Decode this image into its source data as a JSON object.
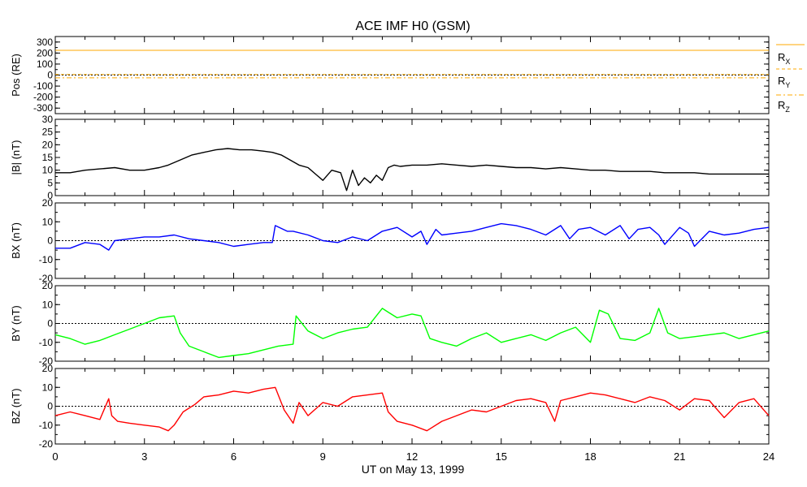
{
  "title": "ACE IMF H0 (GSM)",
  "xlabel": "UT on May 13, 1999",
  "x_ticks": [
    "0",
    "3",
    "6",
    "9",
    "12",
    "15",
    "18",
    "21",
    "24"
  ],
  "colors": {
    "pos_x": "#ffaa00",
    "pos_y": "#ffaa00",
    "pos_z": "#ffaa00",
    "bt": "#000000",
    "bx": "#0000ff",
    "by": "#00ff00",
    "bz": "#ff0000"
  },
  "chart_data": [
    {
      "type": "line",
      "panel": "pos",
      "ylabel": "Pos (RE)",
      "ylim": [
        -350,
        350
      ],
      "y_ticks": [
        -300,
        -200,
        -100,
        0,
        100,
        200,
        300
      ],
      "xlim": [
        0,
        24
      ],
      "zero_line": true,
      "series": [
        {
          "name": "RX",
          "x": [
            0,
            24
          ],
          "y": [
            225,
            225
          ]
        },
        {
          "name": "RY",
          "x": [
            0,
            24
          ],
          "y": [
            5,
            5
          ]
        },
        {
          "name": "RZ",
          "x": [
            0,
            24
          ],
          "y": [
            -25,
            -25
          ]
        }
      ]
    },
    {
      "type": "line",
      "panel": "bt",
      "ylabel": "|B| (nT)",
      "ylim": [
        0,
        30
      ],
      "y_ticks": [
        0,
        5,
        10,
        15,
        20,
        25,
        30
      ],
      "xlim": [
        0,
        24
      ],
      "zero_line": false,
      "series": [
        {
          "x": [
            0,
            0.5,
            1,
            1.5,
            2,
            2.5,
            3,
            3.5,
            3.8,
            4.2,
            4.6,
            5,
            5.4,
            5.8,
            6.2,
            6.6,
            7,
            7.3,
            7.6,
            7.9,
            8.2,
            8.5,
            8.8,
            9,
            9.3,
            9.6,
            9.8,
            10,
            10.2,
            10.4,
            10.6,
            10.8,
            11,
            11.2,
            11.4,
            11.6,
            12,
            12.5,
            13,
            13.5,
            14,
            14.5,
            15,
            15.5,
            16,
            16.5,
            17,
            17.5,
            18,
            18.5,
            19,
            19.5,
            20,
            20.5,
            21,
            21.5,
            22,
            22.5,
            23,
            23.5,
            24
          ],
          "y": [
            9,
            9,
            10,
            10.5,
            11,
            10,
            10,
            11,
            12,
            14,
            16,
            17,
            18,
            18.5,
            18,
            18,
            17.5,
            17,
            16,
            14,
            12,
            11,
            8,
            6,
            10,
            9,
            2,
            10,
            4,
            7,
            5,
            8,
            6,
            11,
            12,
            11.5,
            12,
            12,
            12.5,
            12,
            11.5,
            12,
            11.5,
            11,
            11,
            10.5,
            11,
            10.5,
            10,
            10,
            9.5,
            9.5,
            9.5,
            9,
            9,
            9,
            8.5,
            8.5,
            8.5,
            8.5,
            8.5
          ]
        }
      ]
    },
    {
      "type": "line",
      "panel": "bx",
      "ylabel": "BX (nT)",
      "ylim": [
        -20,
        20
      ],
      "y_ticks": [
        -20,
        -10,
        0,
        10,
        20
      ],
      "xlim": [
        0,
        24
      ],
      "zero_line": true,
      "series": [
        {
          "x": [
            0,
            0.5,
            1,
            1.5,
            1.8,
            2,
            2.5,
            3,
            3.5,
            4,
            4.5,
            5,
            5.5,
            6,
            6.5,
            7,
            7.3,
            7.4,
            7.8,
            8,
            8.5,
            9,
            9.5,
            10,
            10.5,
            11,
            11.5,
            12,
            12.3,
            12.5,
            12.8,
            13,
            13.5,
            14,
            14.5,
            15,
            15.5,
            16,
            16.5,
            17,
            17.3,
            17.6,
            18,
            18.5,
            19,
            19.3,
            19.6,
            20,
            20.3,
            20.5,
            21,
            21.3,
            21.5,
            22,
            22.5,
            23,
            23.5,
            24
          ],
          "y": [
            -4,
            -4,
            -1,
            -2,
            -5,
            0,
            1,
            2,
            2,
            3,
            1,
            0,
            -1,
            -3,
            -2,
            -1,
            -1,
            8,
            5,
            5,
            3,
            0,
            -1,
            2,
            0,
            5,
            7,
            2,
            5,
            -2,
            6,
            3,
            4,
            5,
            7,
            9,
            8,
            6,
            3,
            8,
            1,
            6,
            7,
            3,
            8,
            1,
            6,
            7,
            3,
            -2,
            7,
            4,
            -3,
            5,
            3,
            4,
            6,
            7
          ]
        }
      ]
    },
    {
      "type": "line",
      "panel": "by",
      "ylabel": "BY (nT)",
      "ylim": [
        -20,
        20
      ],
      "y_ticks": [
        -20,
        -10,
        0,
        10,
        20
      ],
      "xlim": [
        0,
        24
      ],
      "zero_line": true,
      "series": [
        {
          "x": [
            0,
            0.5,
            1,
            1.5,
            2,
            2.5,
            3,
            3.5,
            4,
            4.2,
            4.5,
            5,
            5.5,
            6,
            6.5,
            7,
            7.5,
            8,
            8.1,
            8.5,
            9,
            9.5,
            10,
            10.5,
            11,
            11.2,
            11.5,
            12,
            12.3,
            12.6,
            13,
            13.5,
            14,
            14.5,
            15,
            15.5,
            16,
            16.5,
            17,
            17.5,
            18,
            18.3,
            18.6,
            19,
            19.5,
            20,
            20.3,
            20.6,
            21,
            21.5,
            22,
            22.5,
            23,
            23.5,
            24
          ],
          "y": [
            -6,
            -8,
            -11,
            -9,
            -6,
            -3,
            0,
            3,
            4,
            -5,
            -12,
            -15,
            -18,
            -17,
            -16,
            -14,
            -12,
            -11,
            4,
            -4,
            -8,
            -5,
            -3,
            -2,
            8,
            6,
            3,
            5,
            4,
            -8,
            -10,
            -12,
            -8,
            -5,
            -10,
            -8,
            -6,
            -9,
            -5,
            -2,
            -10,
            7,
            5,
            -8,
            -9,
            -5,
            8,
            -5,
            -8,
            -7,
            -6,
            -5,
            -8,
            -6,
            -4
          ]
        }
      ]
    },
    {
      "type": "line",
      "panel": "bz",
      "ylabel": "BZ (nT)",
      "ylim": [
        -20,
        20
      ],
      "y_ticks": [
        -20,
        -10,
        0,
        10,
        20
      ],
      "xlim": [
        0,
        24
      ],
      "zero_line": true,
      "series": [
        {
          "x": [
            0,
            0.5,
            1,
            1.5,
            1.8,
            1.9,
            2.1,
            2.5,
            3,
            3.5,
            3.8,
            4,
            4.3,
            4.7,
            5,
            5.5,
            6,
            6.5,
            7,
            7.4,
            7.7,
            8,
            8.2,
            8.5,
            9,
            9.5,
            10,
            10.5,
            11,
            11.2,
            11.5,
            12,
            12.5,
            13,
            13.5,
            14,
            14.5,
            15,
            15.5,
            16,
            16.5,
            16.8,
            17,
            17.5,
            18,
            18.5,
            19,
            19.5,
            20,
            20.5,
            21,
            21.5,
            22,
            22.5,
            23,
            23.5,
            24
          ],
          "y": [
            -5,
            -3,
            -5,
            -7,
            4,
            -5,
            -8,
            -9,
            -10,
            -11,
            -13,
            -10,
            -3,
            1,
            5,
            6,
            8,
            7,
            9,
            10,
            -2,
            -9,
            2,
            -5,
            2,
            0,
            5,
            6,
            7,
            -3,
            -8,
            -10,
            -13,
            -8,
            -5,
            -2,
            -3,
            0,
            3,
            4,
            2,
            -8,
            3,
            5,
            7,
            6,
            4,
            2,
            5,
            3,
            -2,
            4,
            3,
            -6,
            2,
            4,
            -5
          ]
        }
      ]
    }
  ],
  "legend": {
    "pos": [
      {
        "label": "R",
        "sub": "X"
      },
      {
        "label": "R",
        "sub": "Y"
      },
      {
        "label": "R",
        "sub": "Z"
      }
    ]
  }
}
